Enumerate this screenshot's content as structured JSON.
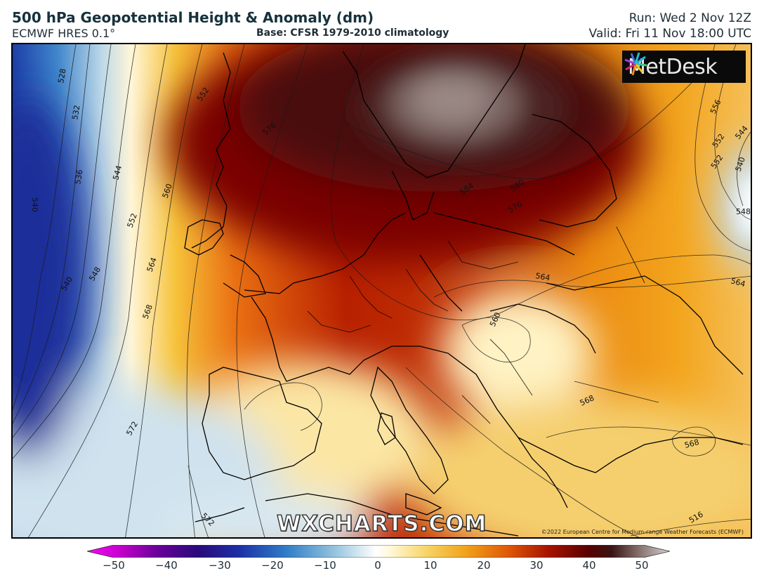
{
  "header": {
    "title": "500 hPa Geopotential Height & Anomaly (dm)",
    "subtitle": "ECMWF HRES 0.1°",
    "base": "Base: CFSR 1979-2010 climatology",
    "run": "Run: Wed 2 Nov 12Z",
    "valid": "Valid: Fri 11 Nov 18:00 UTC"
  },
  "map": {
    "logo_text": "MetDesk",
    "watermark": "WXCHARTS.COM",
    "copyright": "©2022 European Centre for Medium-range Weather Forecasts (ECMWF)",
    "contour_labels": [
      "528",
      "532",
      "536",
      "540",
      "544",
      "548",
      "552",
      "556",
      "560",
      "564",
      "568",
      "572",
      "576",
      "580",
      "584",
      "516"
    ]
  },
  "colorbar": {
    "ticks": [
      "−50",
      "−40",
      "−30",
      "−20",
      "−10",
      "0",
      "10",
      "20",
      "30",
      "40",
      "50"
    ],
    "colors": [
      "#ff00ff",
      "#9a00a8",
      "#3a006e",
      "#1c1c9e",
      "#1f5fbf",
      "#4f9ad4",
      "#a9cde3",
      "#ffffff",
      "#ffe9a8",
      "#f5b82e",
      "#ea6c0c",
      "#b81d00",
      "#6b0000",
      "#3a1111",
      "#7a6460",
      "#c8bfc0"
    ]
  }
}
